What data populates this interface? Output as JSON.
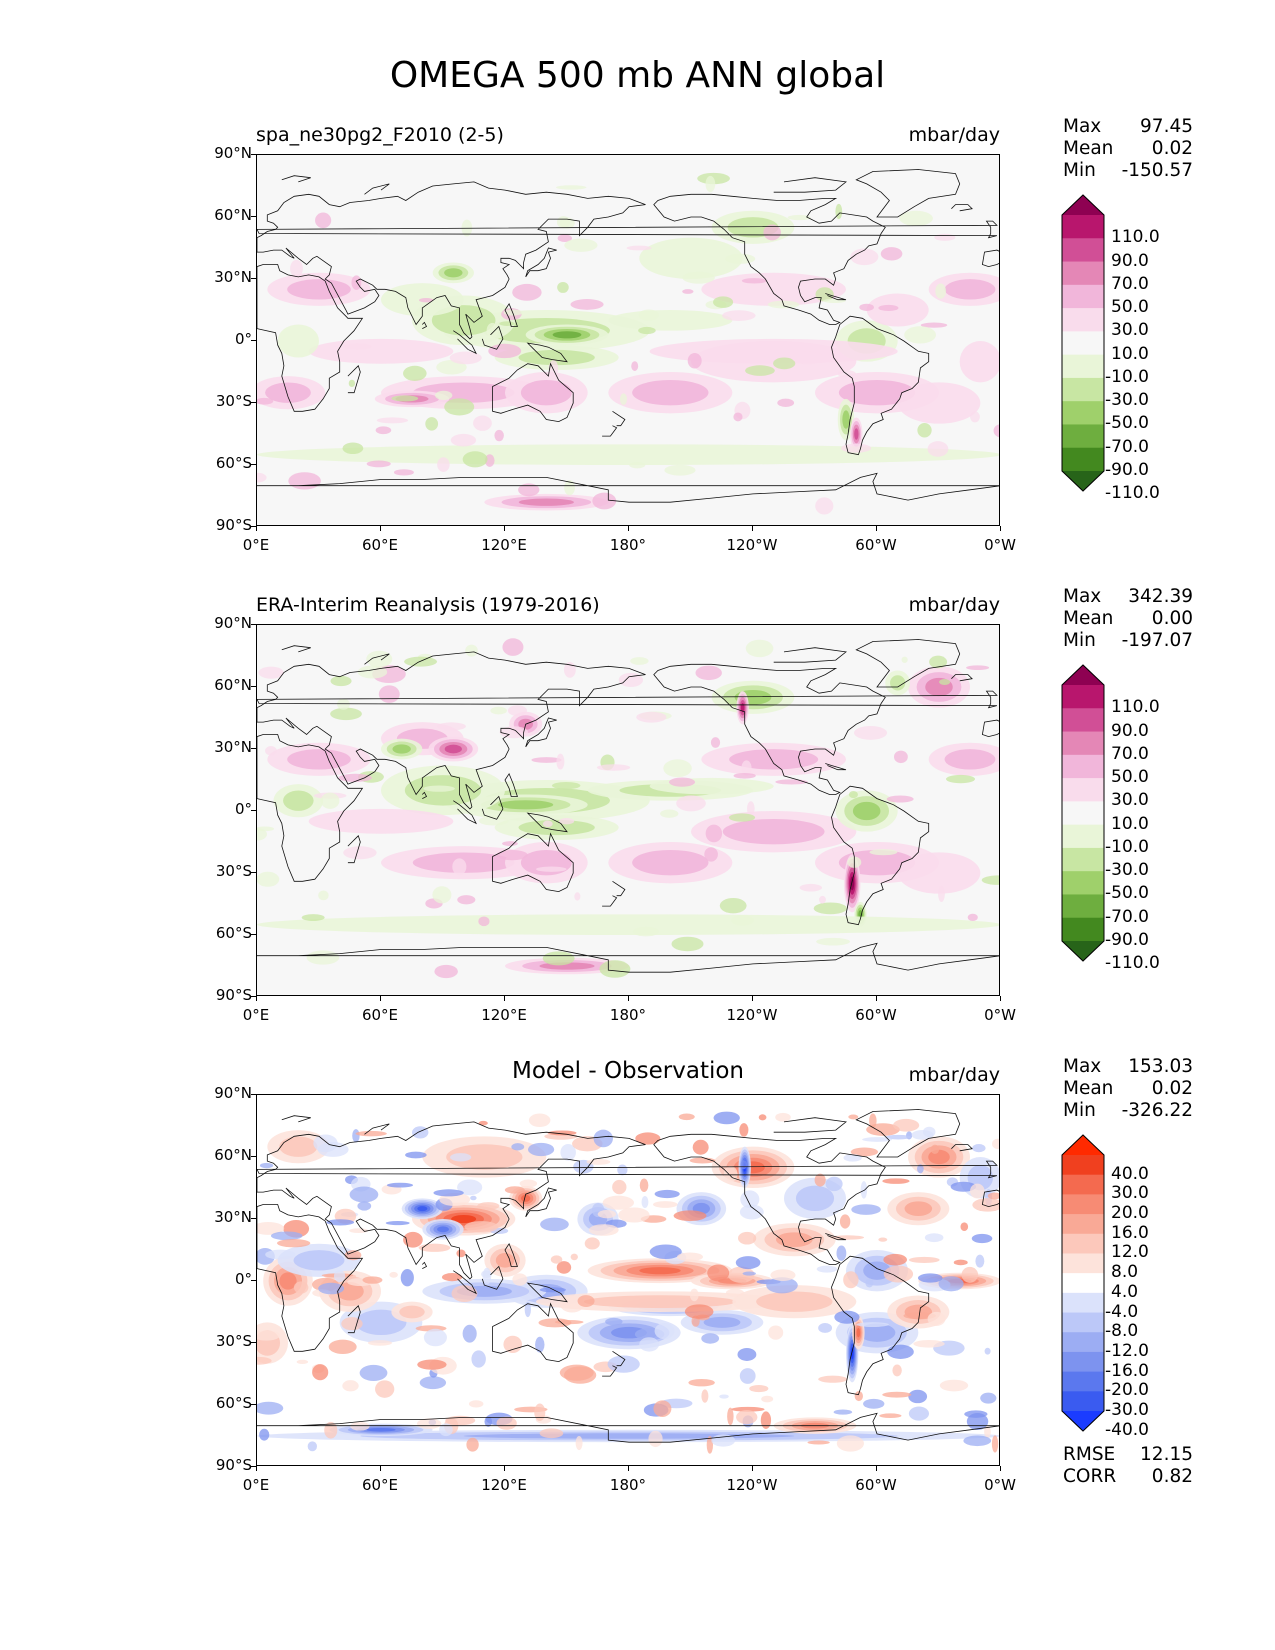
{
  "figure": {
    "title": "OMEGA 500 mb ANN global",
    "lat_ticks": [
      "90°N",
      "60°N",
      "30°N",
      "0°",
      "30°S",
      "60°S",
      "90°S"
    ],
    "lon_ticks": [
      "0°E",
      "60°E",
      "120°E",
      "180°",
      "120°W",
      "60°W",
      "0°W"
    ]
  },
  "panels": [
    {
      "title_left": "spa_ne30pg2_F2010 (2-5)",
      "title_center": "",
      "units": "mbar/day",
      "stats": [
        {
          "label": "Max",
          "value": "97.45"
        },
        {
          "label": "Mean",
          "value": "0.02"
        },
        {
          "label": "Min",
          "value": "-150.57"
        }
      ],
      "colorbar_labels": [
        "110.0",
        "90.0",
        "70.0",
        "50.0",
        "30.0",
        "10.0",
        "-10.0",
        "-30.0",
        "-50.0",
        "-70.0",
        "-90.0",
        "-110.0"
      ],
      "colorbar_colors": [
        "#8e0152",
        "#b8166d",
        "#d14f96",
        "#e487b6",
        "#f1b6da",
        "#f9dcec",
        "#f7f7f7",
        "#e9f5d8",
        "#c8e6a3",
        "#9fd06b",
        "#6eae3f",
        "#43891f",
        "#276419"
      ],
      "footer": []
    },
    {
      "title_left": "ERA-Interim Reanalysis (1979-2016)",
      "title_center": "",
      "units": "mbar/day",
      "stats": [
        {
          "label": "Max",
          "value": "342.39"
        },
        {
          "label": "Mean",
          "value": "0.00"
        },
        {
          "label": "Min",
          "value": "-197.07"
        }
      ],
      "colorbar_labels": [
        "110.0",
        "90.0",
        "70.0",
        "50.0",
        "30.0",
        "10.0",
        "-10.0",
        "-30.0",
        "-50.0",
        "-70.0",
        "-90.0",
        "-110.0"
      ],
      "colorbar_colors": [
        "#8e0152",
        "#b8166d",
        "#d14f96",
        "#e487b6",
        "#f1b6da",
        "#f9dcec",
        "#f7f7f7",
        "#e9f5d8",
        "#c8e6a3",
        "#9fd06b",
        "#6eae3f",
        "#43891f",
        "#276419"
      ],
      "footer": []
    },
    {
      "title_left": "",
      "title_center": "Model - Observation",
      "units": "mbar/day",
      "stats": [
        {
          "label": "Max",
          "value": "153.03"
        },
        {
          "label": "Mean",
          "value": "0.02"
        },
        {
          "label": "Min",
          "value": "-326.22"
        }
      ],
      "colorbar_labels": [
        "40.0",
        "30.0",
        "20.0",
        "16.0",
        "12.0",
        "8.0",
        "4.0",
        "-4.0",
        "-8.0",
        "-12.0",
        "-16.0",
        "-20.0",
        "-30.0",
        "-40.0"
      ],
      "colorbar_colors": [
        "#ff2a00",
        "#f0401f",
        "#f46a4f",
        "#f78b74",
        "#f9a996",
        "#fcc8bb",
        "#fde3db",
        "#ffffff",
        "#dbe2fb",
        "#bcc8f8",
        "#9cadf3",
        "#7d93ef",
        "#5b78ee",
        "#3a5bf0",
        "#1b3cff"
      ],
      "footer": [
        {
          "label": "RMSE",
          "value": "12.15"
        },
        {
          "label": "CORR",
          "value": "0.82"
        }
      ]
    }
  ]
}
